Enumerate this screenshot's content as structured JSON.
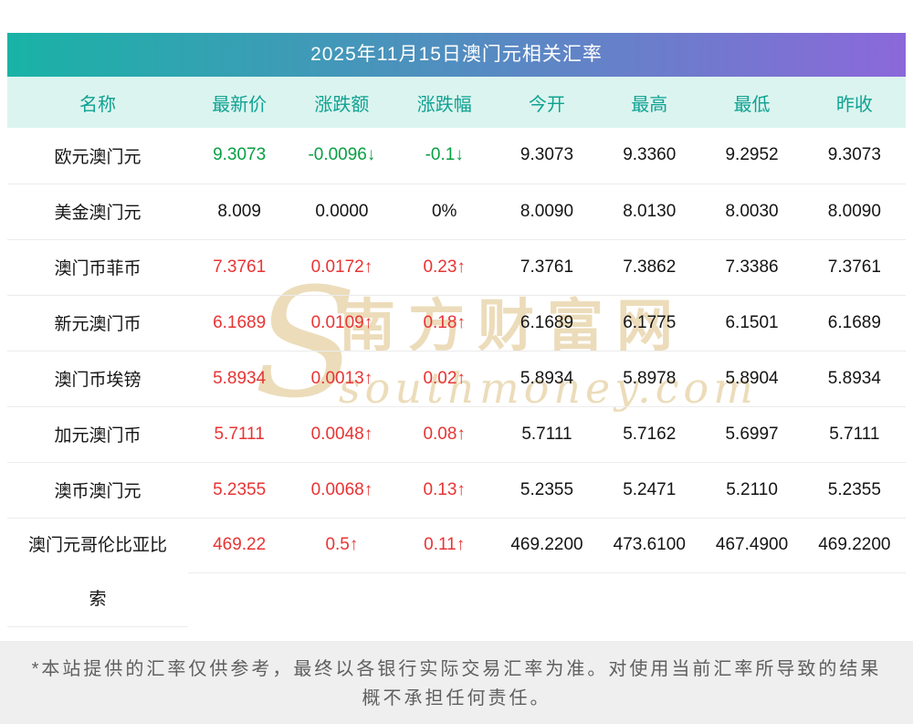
{
  "title": "2025年11月15日澳门元相关汇率",
  "table": {
    "headers": [
      "名称",
      "最新价",
      "涨跌额",
      "涨跌幅",
      "今开",
      "最高",
      "最低",
      "昨收"
    ],
    "rows": [
      {
        "name": "欧元澳门元",
        "latest": "9.3073",
        "change": "-0.0096↓",
        "change_pct": "-0.1↓",
        "open": "9.3073",
        "high": "9.3360",
        "low": "9.2952",
        "prev_close": "9.3073",
        "trend": "down"
      },
      {
        "name": "美金澳门元",
        "latest": "8.009",
        "change": "0.0000",
        "change_pct": "0%",
        "open": "8.0090",
        "high": "8.0130",
        "low": "8.0030",
        "prev_close": "8.0090",
        "trend": "flat"
      },
      {
        "name": "澳门币菲币",
        "latest": "7.3761",
        "change": "0.0172↑",
        "change_pct": "0.23↑",
        "open": "7.3761",
        "high": "7.3862",
        "low": "7.3386",
        "prev_close": "7.3761",
        "trend": "up"
      },
      {
        "name": "新元澳门币",
        "latest": "6.1689",
        "change": "0.0109↑",
        "change_pct": "0.18↑",
        "open": "6.1689",
        "high": "6.1775",
        "low": "6.1501",
        "prev_close": "6.1689",
        "trend": "up"
      },
      {
        "name": "澳门币埃镑",
        "latest": "5.8934",
        "change": "0.0013↑",
        "change_pct": "0.02↑",
        "open": "5.8934",
        "high": "5.8978",
        "low": "5.8904",
        "prev_close": "5.8934",
        "trend": "up"
      },
      {
        "name": "加元澳门币",
        "latest": "5.7111",
        "change": "0.0048↑",
        "change_pct": "0.08↑",
        "open": "5.7111",
        "high": "5.7162",
        "low": "5.6997",
        "prev_close": "5.7111",
        "trend": "up"
      },
      {
        "name": "澳币澳门元",
        "latest": "5.2355",
        "change": "0.0068↑",
        "change_pct": "0.13↑",
        "open": "5.2355",
        "high": "5.2471",
        "low": "5.2110",
        "prev_close": "5.2355",
        "trend": "up"
      },
      {
        "name": "澳门元哥伦比亚比索",
        "latest": "469.22",
        "change": "0.5↑",
        "change_pct": "0.11↑",
        "open": "469.2200",
        "high": "473.6100",
        "low": "467.4900",
        "prev_close": "469.2200",
        "trend": "up"
      }
    ]
  },
  "watermark": {
    "logo": "S",
    "cn": "南方财富网",
    "en": "southmoney.com"
  },
  "footer": "*本站提供的汇率仅供参考，最终以各银行实际交易汇率为准。对使用当前汇率所导致的结果概不承担任何责任。",
  "colors": {
    "up": "#e83434",
    "down": "#089f43",
    "header_text": "#0fa292",
    "header_bg": "#dcf4ef",
    "title_from": "#19b3a6",
    "title_to": "#8b68da",
    "footer_bg": "#efefef",
    "footer_text": "#5f5f5f",
    "watermark": "#e9d6ae"
  }
}
